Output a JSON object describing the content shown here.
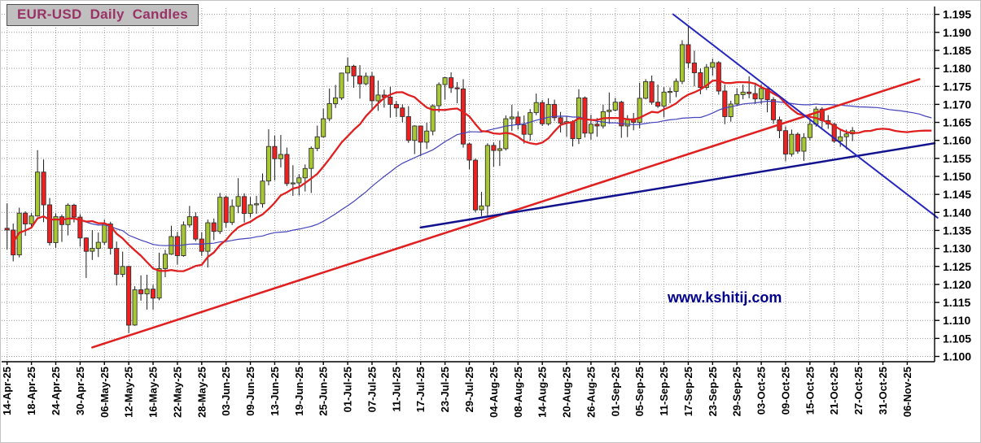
{
  "chart_data": {
    "type": "candlestick",
    "title": "EUR-USD Daily Candles",
    "watermark": "www.kshitij.com",
    "instrument": "EUR-USD",
    "timeframe": "Daily",
    "y_axis": {
      "side": "right",
      "min": 1.1,
      "max": 1.195,
      "tick_step": 0.005,
      "ticks": [
        "1.195",
        "1.190",
        "1.185",
        "1.180",
        "1.175",
        "1.170",
        "1.165",
        "1.160",
        "1.155",
        "1.150",
        "1.145",
        "1.140",
        "1.135",
        "1.130",
        "1.125",
        "1.120",
        "1.115",
        "1.110",
        "1.105",
        "1.100"
      ]
    },
    "x_axis": {
      "label_every_n_candles": 4,
      "total_slots": 153,
      "label_rotation_deg": -90,
      "labels": [
        "14-Apr-25",
        "18-Apr-25",
        "24-Apr-25",
        "30-Apr-25",
        "06-May-25",
        "12-May-25",
        "16-May-25",
        "22-May-25",
        "28-May-25",
        "03-Jun-25",
        "09-Jun-25",
        "13-Jun-25",
        "19-Jun-25",
        "25-Jun-25",
        "01-Jul-25",
        "07-Jul-25",
        "11-Jul-25",
        "17-Jul-25",
        "23-Jul-25",
        "29-Jul-25",
        "04-Aug-25",
        "08-Aug-25",
        "14-Aug-25",
        "20-Aug-25",
        "26-Aug-25",
        "01-Sep-25",
        "05-Sep-25",
        "11-Sep-25",
        "17-Sep-25",
        "23-Sep-25",
        "29-Sep-25",
        "03-Oct-25",
        "09-Oct-25",
        "15-Oct-25",
        "21-Oct-25",
        "27-Oct-25",
        "31-Oct-25",
        "06-Nov-25"
      ]
    },
    "candles": [
      [
        "14-Apr-25",
        1.1356,
        1.1425,
        1.1297,
        1.1351
      ],
      [
        "15-Apr-25",
        1.1351,
        1.1369,
        1.1264,
        1.1282
      ],
      [
        "16-Apr-25",
        1.1282,
        1.1413,
        1.1275,
        1.1398
      ],
      [
        "17-Apr-25",
        1.1398,
        1.1403,
        1.1335,
        1.1368
      ],
      [
        "18-Apr-25",
        1.1368,
        1.1398,
        1.1355,
        1.139
      ],
      [
        "21-Apr-25",
        1.139,
        1.1573,
        1.1388,
        1.1512
      ],
      [
        "22-Apr-25",
        1.1512,
        1.1547,
        1.1373,
        1.1421
      ],
      [
        "23-Apr-25",
        1.1421,
        1.144,
        1.1308,
        1.1316
      ],
      [
        "24-Apr-25",
        1.1316,
        1.1397,
        1.1302,
        1.1388
      ],
      [
        "25-Apr-25",
        1.1388,
        1.1394,
        1.1318,
        1.1366
      ],
      [
        "28-Apr-25",
        1.1366,
        1.1425,
        1.1336,
        1.142
      ],
      [
        "29-Apr-25",
        1.142,
        1.1424,
        1.1372,
        1.1387
      ],
      [
        "30-Apr-25",
        1.1387,
        1.1395,
        1.1305,
        1.1329
      ],
      [
        "01-May-25",
        1.1329,
        1.1331,
        1.1218,
        1.1292
      ],
      [
        "02-May-25",
        1.1292,
        1.1351,
        1.1268,
        1.13
      ],
      [
        "05-May-25",
        1.13,
        1.1344,
        1.1276,
        1.1317
      ],
      [
        "06-May-25",
        1.1317,
        1.138,
        1.131,
        1.1368
      ],
      [
        "07-May-25",
        1.1368,
        1.1374,
        1.1283,
        1.13
      ],
      [
        "08-May-25",
        1.13,
        1.1319,
        1.1197,
        1.1228
      ],
      [
        "09-May-25",
        1.1228,
        1.1291,
        1.122,
        1.125
      ],
      [
        "12-May-25",
        1.125,
        1.1252,
        1.1065,
        1.1087
      ],
      [
        "13-May-25",
        1.1087,
        1.1195,
        1.1085,
        1.1185
      ],
      [
        "14-May-25",
        1.1185,
        1.1225,
        1.1155,
        1.1174
      ],
      [
        "15-May-25",
        1.1174,
        1.1227,
        1.113,
        1.1187
      ],
      [
        "16-May-25",
        1.1187,
        1.1199,
        1.113,
        1.1162
      ],
      [
        "19-May-25",
        1.1162,
        1.1288,
        1.1156,
        1.1244
      ],
      [
        "20-May-25",
        1.1244,
        1.1296,
        1.122,
        1.1284
      ],
      [
        "21-May-25",
        1.1284,
        1.1363,
        1.1282,
        1.1333
      ],
      [
        "22-May-25",
        1.1333,
        1.1346,
        1.1255,
        1.128
      ],
      [
        "23-May-25",
        1.128,
        1.1375,
        1.1277,
        1.1365
      ],
      [
        "26-May-25",
        1.1365,
        1.1418,
        1.1358,
        1.1388
      ],
      [
        "27-May-25",
        1.1388,
        1.14,
        1.132,
        1.1326
      ],
      [
        "28-May-25",
        1.1326,
        1.1345,
        1.1279,
        1.1292
      ],
      [
        "29-May-25",
        1.1292,
        1.138,
        1.1247,
        1.1371
      ],
      [
        "30-May-25",
        1.1371,
        1.1383,
        1.1323,
        1.1347
      ],
      [
        "02-Jun-25",
        1.1347,
        1.1454,
        1.134,
        1.1442
      ],
      [
        "03-Jun-25",
        1.1442,
        1.1447,
        1.1358,
        1.1372
      ],
      [
        "04-Jun-25",
        1.1372,
        1.1436,
        1.1365,
        1.1417
      ],
      [
        "05-Jun-25",
        1.1417,
        1.1495,
        1.1398,
        1.1444
      ],
      [
        "06-Jun-25",
        1.1444,
        1.1453,
        1.1372,
        1.1397
      ],
      [
        "09-Jun-25",
        1.1397,
        1.1443,
        1.1386,
        1.1421
      ],
      [
        "10-Jun-25",
        1.1421,
        1.1446,
        1.1396,
        1.1424
      ],
      [
        "11-Jun-25",
        1.1424,
        1.1508,
        1.1413,
        1.1487
      ],
      [
        "12-Jun-25",
        1.1487,
        1.1631,
        1.1475,
        1.1583
      ],
      [
        "13-Jun-25",
        1.1583,
        1.1613,
        1.1489,
        1.1549
      ],
      [
        "16-Jun-25",
        1.1549,
        1.1615,
        1.1525,
        1.1561
      ],
      [
        "17-Jun-25",
        1.1561,
        1.158,
        1.1473,
        1.148
      ],
      [
        "18-Jun-25",
        1.148,
        1.1531,
        1.1446,
        1.1482
      ],
      [
        "19-Jun-25",
        1.1482,
        1.1506,
        1.1447,
        1.1496
      ],
      [
        "20-Jun-25",
        1.1496,
        1.1533,
        1.1458,
        1.1522
      ],
      [
        "23-Jun-25",
        1.1522,
        1.1583,
        1.1454,
        1.1578
      ],
      [
        "24-Jun-25",
        1.1578,
        1.1641,
        1.157,
        1.161
      ],
      [
        "25-Jun-25",
        1.161,
        1.1688,
        1.1608,
        1.166
      ],
      [
        "26-Jun-25",
        1.166,
        1.1744,
        1.1653,
        1.1702
      ],
      [
        "27-Jun-25",
        1.1702,
        1.1754,
        1.169,
        1.1718
      ],
      [
        "30-Jun-25",
        1.1718,
        1.1788,
        1.1712,
        1.1787
      ],
      [
        "01-Jul-25",
        1.1787,
        1.183,
        1.1764,
        1.1806
      ],
      [
        "02-Jul-25",
        1.1806,
        1.181,
        1.1746,
        1.1779
      ],
      [
        "03-Jul-25",
        1.1779,
        1.1809,
        1.1716,
        1.1757
      ],
      [
        "04-Jul-25",
        1.1757,
        1.1788,
        1.1753,
        1.1778
      ],
      [
        "07-Jul-25",
        1.1778,
        1.179,
        1.1686,
        1.171
      ],
      [
        "08-Jul-25",
        1.171,
        1.1766,
        1.1682,
        1.1726
      ],
      [
        "09-Jul-25",
        1.1726,
        1.1741,
        1.1691,
        1.172
      ],
      [
        "10-Jul-25",
        1.172,
        1.1749,
        1.1663,
        1.17
      ],
      [
        "11-Jul-25",
        1.17,
        1.1709,
        1.1665,
        1.169
      ],
      [
        "14-Jul-25",
        1.169,
        1.17,
        1.165,
        1.1666
      ],
      [
        "15-Jul-25",
        1.1666,
        1.1695,
        1.1593,
        1.16
      ],
      [
        "16-Jul-25",
        1.16,
        1.1642,
        1.1562,
        1.164
      ],
      [
        "17-Jul-25",
        1.164,
        1.1641,
        1.1556,
        1.1595
      ],
      [
        "18-Jul-25",
        1.1595,
        1.1649,
        1.1576,
        1.1626
      ],
      [
        "21-Jul-25",
        1.1626,
        1.17,
        1.1614,
        1.1696
      ],
      [
        "22-Jul-25",
        1.1696,
        1.1761,
        1.1678,
        1.1755
      ],
      [
        "23-Jul-25",
        1.1755,
        1.1776,
        1.1713,
        1.1774
      ],
      [
        "24-Jul-25",
        1.1774,
        1.1789,
        1.1732,
        1.1746
      ],
      [
        "25-Jul-25",
        1.1746,
        1.1762,
        1.1703,
        1.1743
      ],
      [
        "28-Jul-25",
        1.1743,
        1.177,
        1.158,
        1.159
      ],
      [
        "29-Jul-25",
        1.159,
        1.1593,
        1.152,
        1.1545
      ],
      [
        "30-Jul-25",
        1.1545,
        1.155,
        1.14,
        1.1407
      ],
      [
        "31-Jul-25",
        1.1407,
        1.1457,
        1.139,
        1.1418
      ],
      [
        "01-Aug-25",
        1.1418,
        1.1592,
        1.1392,
        1.1586
      ],
      [
        "04-Aug-25",
        1.1586,
        1.1594,
        1.1527,
        1.1572
      ],
      [
        "05-Aug-25",
        1.1572,
        1.16,
        1.1529,
        1.1577
      ],
      [
        "06-Aug-25",
        1.1577,
        1.1669,
        1.1572,
        1.166
      ],
      [
        "07-Aug-25",
        1.166,
        1.1699,
        1.1626,
        1.1665
      ],
      [
        "08-Aug-25",
        1.1665,
        1.168,
        1.163,
        1.1643
      ],
      [
        "11-Aug-25",
        1.1643,
        1.1669,
        1.1591,
        1.1617
      ],
      [
        "12-Aug-25",
        1.1617,
        1.1687,
        1.1599,
        1.1677
      ],
      [
        "13-Aug-25",
        1.1677,
        1.173,
        1.167,
        1.1705
      ],
      [
        "14-Aug-25",
        1.1705,
        1.1712,
        1.164,
        1.1646
      ],
      [
        "15-Aug-25",
        1.1646,
        1.1717,
        1.1641,
        1.17
      ],
      [
        "18-Aug-25",
        1.17,
        1.1713,
        1.1654,
        1.1663
      ],
      [
        "19-Aug-25",
        1.1663,
        1.1679,
        1.1622,
        1.1648
      ],
      [
        "20-Aug-25",
        1.1648,
        1.1667,
        1.161,
        1.1652
      ],
      [
        "21-Aug-25",
        1.1652,
        1.1656,
        1.1583,
        1.1605
      ],
      [
        "22-Aug-25",
        1.1605,
        1.1742,
        1.159,
        1.1718
      ],
      [
        "25-Aug-25",
        1.1718,
        1.1722,
        1.1608,
        1.162
      ],
      [
        "26-Aug-25",
        1.162,
        1.1671,
        1.1602,
        1.1645
      ],
      [
        "27-Aug-25",
        1.1645,
        1.1662,
        1.161,
        1.164
      ],
      [
        "28-Aug-25",
        1.164,
        1.1699,
        1.1633,
        1.168
      ],
      [
        "29-Aug-25",
        1.168,
        1.1733,
        1.1646,
        1.1684
      ],
      [
        "01-Sep-25",
        1.1684,
        1.1718,
        1.1681,
        1.1706
      ],
      [
        "02-Sep-25",
        1.1706,
        1.171,
        1.1607,
        1.164
      ],
      [
        "03-Sep-25",
        1.164,
        1.167,
        1.1609,
        1.166
      ],
      [
        "04-Sep-25",
        1.166,
        1.1676,
        1.1628,
        1.165
      ],
      [
        "05-Sep-25",
        1.165,
        1.176,
        1.1633,
        1.1717
      ],
      [
        "08-Sep-25",
        1.1717,
        1.177,
        1.1714,
        1.1763
      ],
      [
        "09-Sep-25",
        1.1763,
        1.178,
        1.1699,
        1.1706
      ],
      [
        "10-Sep-25",
        1.1706,
        1.1755,
        1.169,
        1.1695
      ],
      [
        "11-Sep-25",
        1.1695,
        1.1748,
        1.1664,
        1.1734
      ],
      [
        "12-Sep-25",
        1.1734,
        1.1747,
        1.1703,
        1.1736
      ],
      [
        "15-Sep-25",
        1.1736,
        1.1772,
        1.172,
        1.1764
      ],
      [
        "16-Sep-25",
        1.1764,
        1.1878,
        1.1756,
        1.1866
      ],
      [
        "17-Sep-25",
        1.1866,
        1.1919,
        1.18,
        1.1815
      ],
      [
        "18-Sep-25",
        1.1815,
        1.1849,
        1.175,
        1.1788
      ],
      [
        "19-Sep-25",
        1.1788,
        1.18,
        1.1728,
        1.1747
      ],
      [
        "22-Sep-25",
        1.1747,
        1.1812,
        1.174,
        1.1803
      ],
      [
        "23-Sep-25",
        1.1803,
        1.1827,
        1.178,
        1.1816
      ],
      [
        "24-Sep-25",
        1.1816,
        1.182,
        1.1727,
        1.1737
      ],
      [
        "25-Sep-25",
        1.1737,
        1.1755,
        1.1645,
        1.1666
      ],
      [
        "26-Sep-25",
        1.1666,
        1.171,
        1.1652,
        1.1701
      ],
      [
        "29-Sep-25",
        1.1701,
        1.1745,
        1.1695,
        1.1727
      ],
      [
        "30-Sep-25",
        1.1727,
        1.1755,
        1.1714,
        1.1734
      ],
      [
        "01-Oct-25",
        1.1734,
        1.1778,
        1.1717,
        1.173
      ],
      [
        "02-Oct-25",
        1.173,
        1.1758,
        1.1701,
        1.1715
      ],
      [
        "03-Oct-25",
        1.1715,
        1.1755,
        1.17,
        1.1744
      ],
      [
        "06-Oct-25",
        1.1744,
        1.1745,
        1.1678,
        1.1713
      ],
      [
        "07-Oct-25",
        1.1713,
        1.172,
        1.1646,
        1.1657
      ],
      [
        "08-Oct-25",
        1.1657,
        1.1666,
        1.1606,
        1.1627
      ],
      [
        "09-Oct-25",
        1.1627,
        1.1639,
        1.1542,
        1.1562
      ],
      [
        "10-Oct-25",
        1.1562,
        1.163,
        1.1555,
        1.1617
      ],
      [
        "13-Oct-25",
        1.1617,
        1.1622,
        1.1563,
        1.157
      ],
      [
        "14-Oct-25",
        1.157,
        1.162,
        1.1543,
        1.1608
      ],
      [
        "15-Oct-25",
        1.1608,
        1.166,
        1.16,
        1.1645
      ],
      [
        "16-Oct-25",
        1.1645,
        1.1694,
        1.1638,
        1.1687
      ],
      [
        "17-Oct-25",
        1.1687,
        1.1692,
        1.1635,
        1.1655
      ],
      [
        "20-Oct-25",
        1.1655,
        1.167,
        1.1632,
        1.1645
      ],
      [
        "21-Oct-25",
        1.1645,
        1.1649,
        1.1593,
        1.1598
      ],
      [
        "22-Oct-25",
        1.1598,
        1.1628,
        1.1582,
        1.161
      ],
      [
        "23-Oct-25",
        1.161,
        1.163,
        1.1575,
        1.1618
      ],
      [
        "24-Oct-25",
        1.1618,
        1.1637,
        1.1598,
        1.1627
      ]
    ],
    "moving_averages": [
      {
        "name": "slow-ma-line",
        "period": 40,
        "color": "#4343bb",
        "width": 1.2
      },
      {
        "name": "fast-ma-line",
        "period": 13,
        "color": "#e02020",
        "width": 2.3
      }
    ],
    "trendlines": [
      {
        "name": "red-ascending-support-line",
        "from": [
          14,
          1.1025
        ],
        "to": [
          150,
          1.177
        ],
        "color": "#e02020",
        "width": 2.5
      },
      {
        "name": "navy-ascending-support-line",
        "from": [
          68,
          1.1358
        ],
        "to": [
          152.5,
          1.1592
        ],
        "color": "#12128e",
        "width": 2.5
      },
      {
        "name": "blue-descending-resistance-line",
        "from": [
          109.5,
          1.195
        ],
        "to": [
          153,
          1.1385
        ],
        "color": "#2626c0",
        "width": 2
      }
    ],
    "colors": {
      "bull_candle": "#a8c832",
      "bear_candle": "#ee2020",
      "candle_outline": "#303030",
      "grid": "#9a9a9a",
      "axis": "#000000",
      "watermark_text": "#00008c",
      "title_text": "#993366",
      "title_background": "#c0c0c0"
    },
    "layout_hints": {
      "grid": true,
      "y_axis_side": "right",
      "x_labels_rotated": true
    }
  }
}
